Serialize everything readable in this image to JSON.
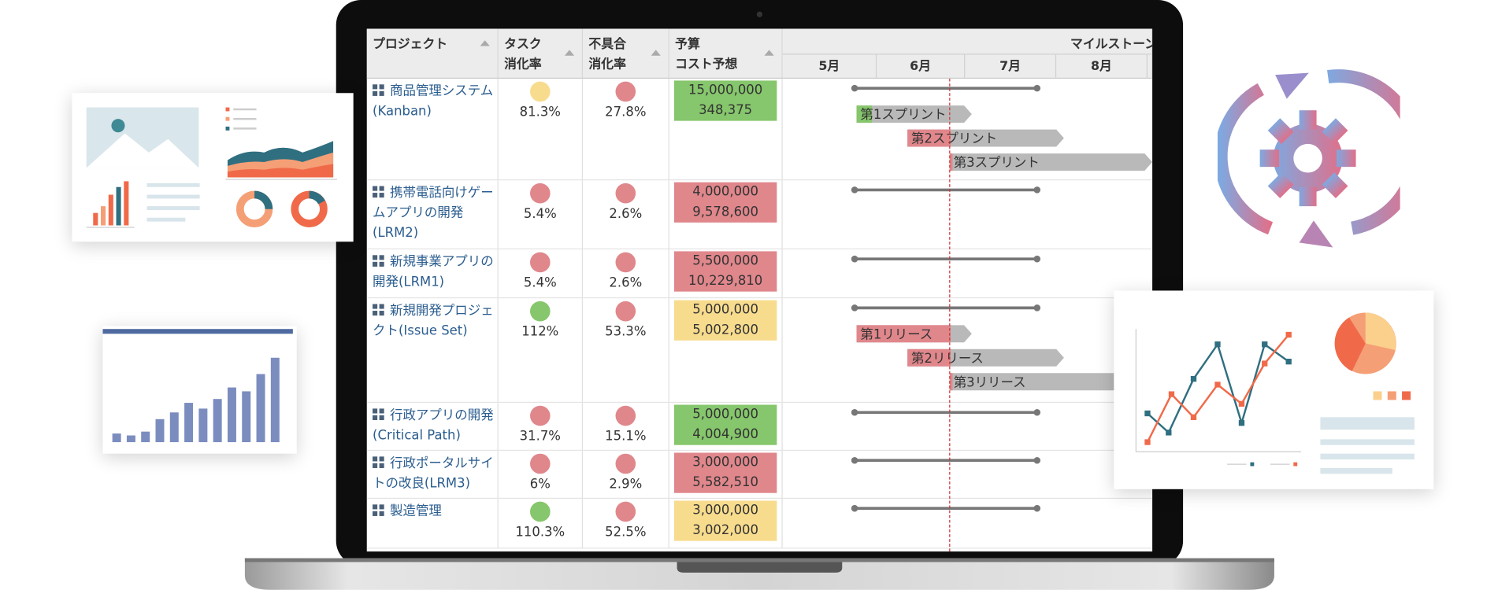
{
  "table": {
    "headers": [
      [
        "プロジェクト"
      ],
      [
        "タスク",
        "消化率"
      ],
      [
        "不具合",
        "消化率"
      ],
      [
        "予算",
        "コスト予想"
      ]
    ],
    "milestone_header": "マイルストーン",
    "months": [
      "5月",
      "6月",
      "7月",
      "8月"
    ],
    "status_colors": {
      "yellow": "#f8dc8e",
      "red": "#e0878c",
      "green": "#86c66c"
    },
    "rows": [
      {
        "project": "商品管理システム(Kanban)",
        "task": "81.3%",
        "task_status": "yellow",
        "defect": "27.8%",
        "defect_status": "red",
        "budget": "15,000,000",
        "forecast": "348,375",
        "budget_status": "green",
        "milestones": [
          "第1スプリント",
          "第2スプリント",
          "第3スプリント"
        ]
      },
      {
        "project": "携帯電話向けゲームアプリの開発(LRM2)",
        "task": "5.4%",
        "task_status": "red",
        "defect": "2.6%",
        "defect_status": "red",
        "budget": "4,000,000",
        "forecast": "9,578,600",
        "budget_status": "red",
        "milestones": []
      },
      {
        "project": "新規事業アプリの開発(LRM1)",
        "task": "5.4%",
        "task_status": "red",
        "defect": "2.6%",
        "defect_status": "red",
        "budget": "5,500,000",
        "forecast": "10,229,810",
        "budget_status": "red",
        "milestones": []
      },
      {
        "project": "新規開発プロジェクト(Issue Set)",
        "task": "112%",
        "task_status": "green",
        "defect": "53.3%",
        "defect_status": "red",
        "budget": "5,000,000",
        "forecast": "5,002,800",
        "budget_status": "yellow",
        "milestones": [
          "第1リリース",
          "第2リリース",
          "第3リリース"
        ]
      },
      {
        "project": "行政アプリの開発(Critical Path)",
        "task": "31.7%",
        "task_status": "red",
        "defect": "15.1%",
        "defect_status": "red",
        "budget": "5,000,000",
        "forecast": "4,004,900",
        "budget_status": "green",
        "milestones": []
      },
      {
        "project": "行政ポータルサイトの改良(LRM3)",
        "task": "6%",
        "task_status": "red",
        "defect": "2.9%",
        "defect_status": "red",
        "budget": "3,000,000",
        "forecast": "5,582,510",
        "budget_status": "red",
        "milestones": []
      },
      {
        "project": "製造管理",
        "task": "110.3%",
        "task_status": "green",
        "defect": "52.5%",
        "defect_status": "red",
        "budget": "3,000,000",
        "forecast": "3,002,000",
        "budget_status": "yellow",
        "milestones": []
      }
    ]
  }
}
